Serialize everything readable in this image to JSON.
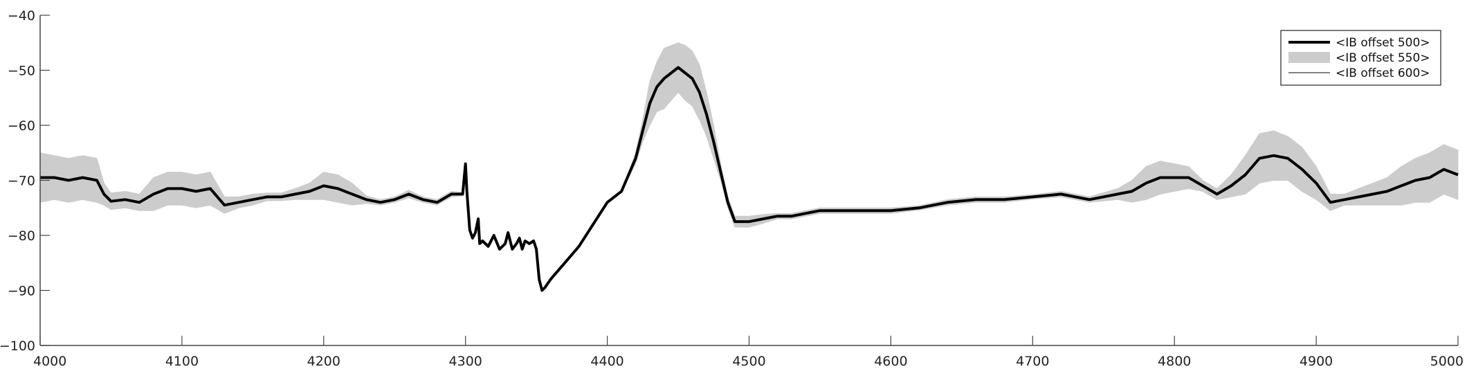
{
  "chart_data": {
    "type": "line",
    "title": "",
    "xlabel": "",
    "ylabel": "",
    "xlim": [
      4000,
      5000
    ],
    "ylim": [
      -100,
      -40
    ],
    "xticks": [
      4000,
      4100,
      4200,
      4300,
      4400,
      4500,
      4600,
      4700,
      4800,
      4900,
      5000
    ],
    "yticks": [
      -40,
      -50,
      -60,
      -70,
      -80,
      -90,
      -100
    ],
    "grid": false,
    "legend_position": "top-right",
    "series": [
      {
        "name": "<IB offset 500>",
        "style": "thick-black",
        "color": "#000000",
        "x": [
          4000,
          4010,
          4020,
          4030,
          4040,
          4045,
          4050,
          4060,
          4070,
          4080,
          4090,
          4100,
          4110,
          4120,
          4130,
          4140,
          4150,
          4160,
          4170,
          4180,
          4190,
          4200,
          4210,
          4220,
          4230,
          4240,
          4250,
          4260,
          4270,
          4280,
          4290,
          4298,
          4300,
          4301,
          4303,
          4305,
          4307,
          4309,
          4310,
          4312,
          4316,
          4320,
          4324,
          4328,
          4330,
          4333,
          4336,
          4338,
          4340,
          4342,
          4345,
          4348,
          4350,
          4352,
          4354,
          4356,
          4360,
          4370,
          4380,
          4390,
          4400,
          4410,
          4420,
          4425,
          4430,
          4435,
          4440,
          4445,
          4450,
          4455,
          4460,
          4465,
          4470,
          4475,
          4480,
          4485,
          4490,
          4500,
          4510,
          4520,
          4530,
          4540,
          4550,
          4560,
          4570,
          4580,
          4590,
          4600,
          4620,
          4640,
          4660,
          4680,
          4700,
          4720,
          4740,
          4760,
          4770,
          4780,
          4790,
          4800,
          4810,
          4820,
          4830,
          4840,
          4850,
          4860,
          4870,
          4880,
          4890,
          4900,
          4910,
          4920,
          4930,
          4940,
          4950,
          4960,
          4970,
          4980,
          4990,
          5000
        ],
        "y": [
          -69.5,
          -69.5,
          -70,
          -69.5,
          -70,
          -72.5,
          -73.8,
          -73.5,
          -74,
          -72.5,
          -71.5,
          -71.5,
          -72,
          -71.5,
          -74.5,
          -74,
          -73.5,
          -73,
          -73,
          -72.5,
          -72,
          -71,
          -71.5,
          -72.5,
          -73.5,
          -74,
          -73.5,
          -72.5,
          -73.5,
          -74,
          -72.5,
          -72.5,
          -67,
          -72,
          -79,
          -80.5,
          -79.5,
          -77,
          -81.5,
          -81,
          -82,
          -80,
          -82.5,
          -81.5,
          -79.5,
          -82.5,
          -81.5,
          -80.5,
          -82.5,
          -81,
          -81.5,
          -81,
          -82.5,
          -88,
          -90,
          -89.5,
          -88,
          -85,
          -82,
          -78,
          -74,
          -72,
          -66,
          -61,
          -56,
          -53,
          -51.5,
          -50.5,
          -49.5,
          -50.5,
          -51.5,
          -54,
          -58,
          -63,
          -68.5,
          -74,
          -77.5,
          -77.5,
          -77,
          -76.5,
          -76.5,
          -76,
          -75.5,
          -75.5,
          -75.5,
          -75.5,
          -75.5,
          -75.5,
          -75,
          -74,
          -73.5,
          -73.5,
          -73,
          -72.5,
          -73.5,
          -72.5,
          -72,
          -70.5,
          -69.5,
          -69.5,
          -69.5,
          -71,
          -72.5,
          -71,
          -69,
          -66,
          -65.5,
          -66,
          -68,
          -70.5,
          -74,
          -73.5,
          -73,
          -72.5,
          -72,
          -71,
          -70,
          -69.5,
          -68,
          -69
        ]
      },
      {
        "name": "<IB offset 550>",
        "style": "grey-band",
        "color": "#cccccc",
        "x": [
          4000,
          4010,
          4020,
          4030,
          4040,
          4045,
          4050,
          4060,
          4070,
          4080,
          4090,
          4100,
          4110,
          4120,
          4130,
          4140,
          4150,
          4160,
          4170,
          4180,
          4190,
          4200,
          4210,
          4220,
          4230,
          4240,
          4250,
          4260,
          4270,
          4280,
          4290,
          4298,
          4300,
          4301,
          4303,
          4305,
          4307,
          4309,
          4310,
          4312,
          4316,
          4320,
          4324,
          4328,
          4330,
          4333,
          4336,
          4338,
          4340,
          4342,
          4345,
          4348,
          4350,
          4352,
          4354,
          4356,
          4360,
          4370,
          4380,
          4390,
          4400,
          4410,
          4420,
          4425,
          4430,
          4435,
          4440,
          4445,
          4450,
          4455,
          4460,
          4465,
          4470,
          4475,
          4480,
          4485,
          4490,
          4500,
          4510,
          4520,
          4530,
          4540,
          4550,
          4560,
          4570,
          4580,
          4590,
          4600,
          4620,
          4640,
          4660,
          4680,
          4700,
          4720,
          4740,
          4760,
          4770,
          4780,
          4790,
          4800,
          4810,
          4820,
          4830,
          4840,
          4850,
          4860,
          4870,
          4880,
          4890,
          4900,
          4910,
          4920,
          4930,
          4940,
          4950,
          4960,
          4970,
          4980,
          4990,
          5000
        ],
        "y_upper": [
          -65,
          -65.5,
          -66,
          -65.5,
          -66,
          -70.5,
          -72.3,
          -72,
          -72.5,
          -69.5,
          -68.5,
          -68.5,
          -69,
          -68.5,
          -73,
          -73,
          -72.5,
          -72.3,
          -72.3,
          -71.5,
          -70.5,
          -68.5,
          -69,
          -70.5,
          -72.8,
          -73.5,
          -73,
          -71.8,
          -73,
          -73.5,
          -72,
          -72.2,
          -67,
          -72,
          -79,
          -80.5,
          -79.5,
          -77,
          -81.5,
          -81,
          -82,
          -80,
          -82.5,
          -81.5,
          -79.5,
          -82.5,
          -81.5,
          -80.5,
          -82.5,
          -81,
          -81.5,
          -81,
          -82.5,
          -88,
          -90,
          -89.5,
          -88,
          -85,
          -82,
          -78,
          -74,
          -72,
          -65,
          -59,
          -52,
          -48.5,
          -46,
          -45.5,
          -45,
          -45.5,
          -46.5,
          -49,
          -54,
          -60,
          -67,
          -73,
          -76.5,
          -76.5,
          -76.2,
          -76,
          -76,
          -75.5,
          -75,
          -75,
          -75,
          -75,
          -75,
          -75,
          -74.6,
          -73.5,
          -73,
          -73,
          -72.6,
          -72,
          -73,
          -71.5,
          -70,
          -67.5,
          -66.5,
          -67,
          -67.5,
          -70,
          -71.5,
          -69,
          -65.5,
          -61.5,
          -61,
          -62,
          -64,
          -67.5,
          -72.5,
          -72.5,
          -71.5,
          -70.5,
          -69.5,
          -67.5,
          -66,
          -65,
          -63.5,
          -64.5
        ],
        "y_lower": [
          -74,
          -73.5,
          -74,
          -73.5,
          -74,
          -74.5,
          -75.3,
          -75,
          -75.5,
          -75.5,
          -74.5,
          -74.5,
          -75,
          -74.5,
          -76,
          -75,
          -74.5,
          -73.7,
          -73.7,
          -73.5,
          -73.5,
          -73.5,
          -74,
          -74.5,
          -74.2,
          -74.5,
          -74,
          -73.2,
          -74,
          -74.5,
          -73,
          -72.8,
          -67,
          -72,
          -79,
          -80.5,
          -79.5,
          -77,
          -81.5,
          -81,
          -82,
          -80,
          -82.5,
          -81.5,
          -79.5,
          -82.5,
          -81.5,
          -80.5,
          -82.5,
          -81,
          -81.5,
          -81,
          -82.5,
          -88,
          -90,
          -89.5,
          -88,
          -85,
          -82,
          -78,
          -74,
          -72,
          -67,
          -63,
          -60,
          -57.5,
          -57,
          -55.5,
          -54,
          -55.5,
          -56.5,
          -59,
          -62,
          -66,
          -70,
          -75,
          -78.5,
          -78.5,
          -77.8,
          -77,
          -77,
          -76.5,
          -76,
          -76,
          -76,
          -76,
          -76,
          -76,
          -75.4,
          -74.5,
          -74,
          -74,
          -73.4,
          -73,
          -74,
          -73.5,
          -74,
          -73.5,
          -72.5,
          -72,
          -71.5,
          -72,
          -73.5,
          -73,
          -72.5,
          -70.5,
          -70,
          -70,
          -72,
          -73.5,
          -75.5,
          -74.5,
          -74.5,
          -74.5,
          -74.5,
          -74.5,
          -74,
          -74,
          -72.5,
          -73.5
        ]
      },
      {
        "name": "<IB offset 600>",
        "style": "thin-black",
        "color": "#000000",
        "x": [
          4000,
          4010,
          4020,
          4030,
          4040,
          4045,
          4050,
          4060,
          4070,
          4080,
          4090,
          4100,
          4110,
          4120,
          4130,
          4140,
          4150,
          4160,
          4170,
          4180,
          4190,
          4200,
          4210,
          4220,
          4230,
          4240,
          4250,
          4260,
          4270,
          4280,
          4290,
          4298,
          4300,
          4301,
          4303,
          4305,
          4307,
          4309,
          4310,
          4312,
          4316,
          4320,
          4324,
          4328,
          4330,
          4333,
          4336,
          4338,
          4340,
          4342,
          4345,
          4348,
          4350,
          4352,
          4354,
          4356,
          4360,
          4370,
          4380,
          4390,
          4400,
          4410,
          4420,
          4425,
          4430,
          4435,
          4440,
          4445,
          4450,
          4455,
          4460,
          4465,
          4470,
          4475,
          4480,
          4485,
          4490,
          4500,
          4510,
          4520,
          4530,
          4540,
          4550,
          4560,
          4570,
          4580,
          4590,
          4600,
          4620,
          4640,
          4660,
          4680,
          4700,
          4720,
          4740,
          4760,
          4770,
          4780,
          4790,
          4800,
          4810,
          4820,
          4830,
          4840,
          4850,
          4860,
          4870,
          4880,
          4890,
          4900,
          4910,
          4920,
          4930,
          4940,
          4950,
          4960,
          4970,
          4980,
          4990,
          5000
        ],
        "y": [
          -69.5,
          -69.5,
          -70,
          -69.5,
          -70,
          -72.5,
          -73.8,
          -73.5,
          -74,
          -72.5,
          -71.5,
          -71.5,
          -72,
          -71.5,
          -74.5,
          -74,
          -73.5,
          -73,
          -73,
          -72.5,
          -72,
          -71,
          -71.5,
          -72.5,
          -73.5,
          -74,
          -73.5,
          -72.5,
          -73.5,
          -74,
          -72.5,
          -72.5,
          -67,
          -72,
          -79,
          -80.5,
          -79.5,
          -77,
          -81.5,
          -81,
          -82,
          -80,
          -82.5,
          -81.5,
          -79.5,
          -82.5,
          -81.5,
          -80.5,
          -82.5,
          -81,
          -81.5,
          -81,
          -82.5,
          -88,
          -90,
          -89.5,
          -88,
          -85,
          -82,
          -78,
          -74,
          -72,
          -66,
          -61,
          -56,
          -53,
          -51.5,
          -50.5,
          -49.5,
          -50.5,
          -51.5,
          -54,
          -58,
          -63,
          -68.5,
          -74,
          -77.5,
          -77.5,
          -77,
          -76.5,
          -76.5,
          -76,
          -75.5,
          -75.5,
          -75.5,
          -75.5,
          -75.5,
          -75.5,
          -75,
          -74,
          -73.5,
          -73.5,
          -73,
          -72.5,
          -73.5,
          -72.5,
          -72,
          -70.5,
          -69.5,
          -69.5,
          -69.5,
          -71,
          -72.5,
          -71,
          -69,
          -66,
          -65.5,
          -66,
          -68,
          -70.5,
          -74,
          -73.5,
          -73,
          -72.5,
          -72,
          -71,
          -70,
          -69.5,
          -68,
          -69
        ]
      }
    ]
  }
}
